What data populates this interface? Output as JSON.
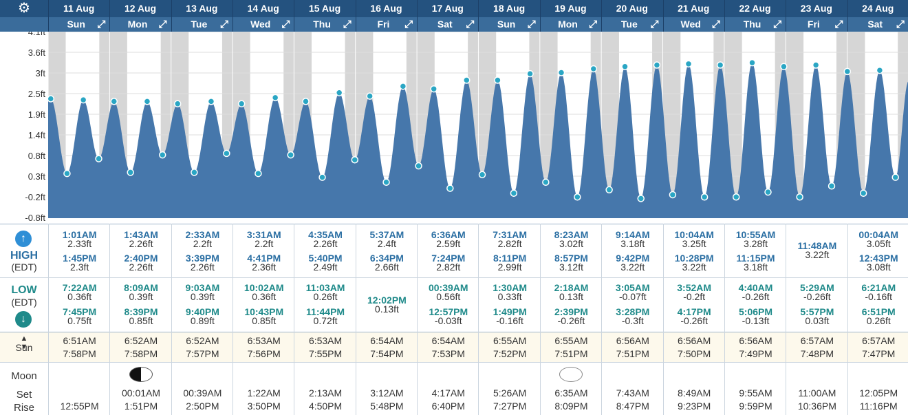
{
  "settings_icon": "gear-icon",
  "expand_icon": "expand-arrows-icon",
  "dates": [
    "11 Aug",
    "12 Aug",
    "13 Aug",
    "14 Aug",
    "15 Aug",
    "16 Aug",
    "17 Aug",
    "18 Aug",
    "19 Aug",
    "20 Aug",
    "21 Aug",
    "22 Aug",
    "23 Aug",
    "24 Aug"
  ],
  "weekdays": [
    "Sun",
    "Mon",
    "Tue",
    "Wed",
    "Thu",
    "Fri",
    "Sat",
    "Sun",
    "Mon",
    "Tue",
    "Wed",
    "Thu",
    "Fri",
    "Sat"
  ],
  "chart_data": {
    "type": "area",
    "y_tick_labels": [
      "4.1ft",
      "3.6ft",
      "3ft",
      "2.5ft",
      "1.9ft",
      "1.4ft",
      "0.8ft",
      "0.3ft",
      "-0.2ft",
      "-0.8ft"
    ],
    "ylim": [
      -0.8,
      4.1
    ],
    "grid": true,
    "tide_points": [
      {
        "day": 0,
        "time": "00:00",
        "h": 2.3
      },
      {
        "day": 0,
        "time": "01:01",
        "h": 2.33
      },
      {
        "day": 0,
        "time": "07:22",
        "h": 0.36
      },
      {
        "day": 0,
        "time": "13:45",
        "h": 2.3
      },
      {
        "day": 0,
        "time": "19:45",
        "h": 0.75
      },
      {
        "day": 1,
        "time": "01:43",
        "h": 2.26
      },
      {
        "day": 1,
        "time": "08:09",
        "h": 0.39
      },
      {
        "day": 1,
        "time": "14:40",
        "h": 2.26
      },
      {
        "day": 1,
        "time": "20:39",
        "h": 0.85
      },
      {
        "day": 2,
        "time": "02:33",
        "h": 2.2
      },
      {
        "day": 2,
        "time": "09:03",
        "h": 0.39
      },
      {
        "day": 2,
        "time": "15:39",
        "h": 2.26
      },
      {
        "day": 2,
        "time": "21:40",
        "h": 0.89
      },
      {
        "day": 3,
        "time": "03:31",
        "h": 2.2
      },
      {
        "day": 3,
        "time": "10:02",
        "h": 0.36
      },
      {
        "day": 3,
        "time": "16:41",
        "h": 2.36
      },
      {
        "day": 3,
        "time": "22:43",
        "h": 0.85
      },
      {
        "day": 4,
        "time": "04:35",
        "h": 2.26
      },
      {
        "day": 4,
        "time": "11:03",
        "h": 0.26
      },
      {
        "day": 4,
        "time": "17:40",
        "h": 2.49
      },
      {
        "day": 4,
        "time": "23:44",
        "h": 0.72
      },
      {
        "day": 5,
        "time": "05:37",
        "h": 2.4
      },
      {
        "day": 5,
        "time": "12:02",
        "h": 0.13
      },
      {
        "day": 5,
        "time": "18:34",
        "h": 2.66
      },
      {
        "day": 6,
        "time": "00:39",
        "h": 0.56
      },
      {
        "day": 6,
        "time": "06:36",
        "h": 2.59
      },
      {
        "day": 6,
        "time": "12:57",
        "h": -0.03
      },
      {
        "day": 6,
        "time": "19:24",
        "h": 2.82
      },
      {
        "day": 7,
        "time": "01:30",
        "h": 0.33
      },
      {
        "day": 7,
        "time": "07:31",
        "h": 2.82
      },
      {
        "day": 7,
        "time": "13:49",
        "h": -0.16
      },
      {
        "day": 7,
        "time": "20:11",
        "h": 2.99
      },
      {
        "day": 8,
        "time": "02:18",
        "h": 0.13
      },
      {
        "day": 8,
        "time": "08:23",
        "h": 3.02
      },
      {
        "day": 8,
        "time": "14:39",
        "h": -0.26
      },
      {
        "day": 8,
        "time": "20:57",
        "h": 3.12
      },
      {
        "day": 9,
        "time": "03:05",
        "h": -0.07
      },
      {
        "day": 9,
        "time": "09:14",
        "h": 3.18
      },
      {
        "day": 9,
        "time": "15:28",
        "h": -0.3
      },
      {
        "day": 9,
        "time": "21:42",
        "h": 3.22
      },
      {
        "day": 10,
        "time": "03:52",
        "h": -0.2
      },
      {
        "day": 10,
        "time": "10:04",
        "h": 3.25
      },
      {
        "day": 10,
        "time": "16:17",
        "h": -0.26
      },
      {
        "day": 10,
        "time": "22:28",
        "h": 3.22
      },
      {
        "day": 11,
        "time": "04:40",
        "h": -0.26
      },
      {
        "day": 11,
        "time": "10:55",
        "h": 3.28
      },
      {
        "day": 11,
        "time": "17:06",
        "h": -0.13
      },
      {
        "day": 11,
        "time": "23:15",
        "h": 3.18
      },
      {
        "day": 12,
        "time": "05:29",
        "h": -0.26
      },
      {
        "day": 12,
        "time": "11:48",
        "h": 3.22
      },
      {
        "day": 12,
        "time": "17:57",
        "h": 0.03
      },
      {
        "day": 13,
        "time": "00:04",
        "h": 3.05
      },
      {
        "day": 13,
        "time": "06:21",
        "h": -0.16
      },
      {
        "day": 13,
        "time": "12:43",
        "h": 3.08
      },
      {
        "day": 13,
        "time": "18:51",
        "h": 0.26
      },
      {
        "day": 13,
        "time": "23:59",
        "h": 2.8
      }
    ],
    "colors": {
      "tide_fill": "#4677ab",
      "marker": "#2aa6c4",
      "night_shade": "#d6d6d6",
      "grid": "#dddddd"
    }
  },
  "labels": {
    "high": "HIGH",
    "low": "LOW",
    "tz": "(EDT)",
    "sun": "Sun",
    "moon": "Moon",
    "set": "Set",
    "rise": "Rise",
    "up_icon": "arrow-up-icon",
    "down_icon": "arrow-down-icon",
    "sun_icon": "sun-up-down-icon"
  },
  "days": [
    {
      "high": [
        {
          "t": "1:01AM",
          "h": "2.33ft"
        },
        {
          "t": "1:45PM",
          "h": "2.3ft"
        }
      ],
      "low": [
        {
          "t": "7:22AM",
          "h": "0.36ft"
        },
        {
          "t": "7:45PM",
          "h": "0.75ft"
        }
      ],
      "sunrise": "6:51AM",
      "sunset": "7:58PM",
      "moon_phase": "",
      "moon_set": "",
      "moon_rise": "12:55PM"
    },
    {
      "high": [
        {
          "t": "1:43AM",
          "h": "2.26ft"
        },
        {
          "t": "2:40PM",
          "h": "2.26ft"
        }
      ],
      "low": [
        {
          "t": "8:09AM",
          "h": "0.39ft"
        },
        {
          "t": "8:39PM",
          "h": "0.85ft"
        }
      ],
      "sunrise": "6:52AM",
      "sunset": "7:58PM",
      "moon_phase": "first-quarter",
      "moon_set": "00:01AM",
      "moon_rise": "1:51PM"
    },
    {
      "high": [
        {
          "t": "2:33AM",
          "h": "2.2ft"
        },
        {
          "t": "3:39PM",
          "h": "2.26ft"
        }
      ],
      "low": [
        {
          "t": "9:03AM",
          "h": "0.39ft"
        },
        {
          "t": "9:40PM",
          "h": "0.89ft"
        }
      ],
      "sunrise": "6:52AM",
      "sunset": "7:57PM",
      "moon_phase": "",
      "moon_set": "00:39AM",
      "moon_rise": "2:50PM"
    },
    {
      "high": [
        {
          "t": "3:31AM",
          "h": "2.2ft"
        },
        {
          "t": "4:41PM",
          "h": "2.36ft"
        }
      ],
      "low": [
        {
          "t": "10:02AM",
          "h": "0.36ft"
        },
        {
          "t": "10:43PM",
          "h": "0.85ft"
        }
      ],
      "sunrise": "6:53AM",
      "sunset": "7:56PM",
      "moon_phase": "",
      "moon_set": "1:22AM",
      "moon_rise": "3:50PM"
    },
    {
      "high": [
        {
          "t": "4:35AM",
          "h": "2.26ft"
        },
        {
          "t": "5:40PM",
          "h": "2.49ft"
        }
      ],
      "low": [
        {
          "t": "11:03AM",
          "h": "0.26ft"
        },
        {
          "t": "11:44PM",
          "h": "0.72ft"
        }
      ],
      "sunrise": "6:53AM",
      "sunset": "7:55PM",
      "moon_phase": "",
      "moon_set": "2:13AM",
      "moon_rise": "4:50PM"
    },
    {
      "high": [
        {
          "t": "5:37AM",
          "h": "2.4ft"
        },
        {
          "t": "6:34PM",
          "h": "2.66ft"
        }
      ],
      "low": [
        {
          "t": "12:02PM",
          "h": "0.13ft"
        }
      ],
      "sunrise": "6:54AM",
      "sunset": "7:54PM",
      "moon_phase": "",
      "moon_set": "3:12AM",
      "moon_rise": "5:48PM"
    },
    {
      "high": [
        {
          "t": "6:36AM",
          "h": "2.59ft"
        },
        {
          "t": "7:24PM",
          "h": "2.82ft"
        }
      ],
      "low": [
        {
          "t": "00:39AM",
          "h": "0.56ft"
        },
        {
          "t": "12:57PM",
          "h": "-0.03ft"
        }
      ],
      "sunrise": "6:54AM",
      "sunset": "7:53PM",
      "moon_phase": "",
      "moon_set": "4:17AM",
      "moon_rise": "6:40PM"
    },
    {
      "high": [
        {
          "t": "7:31AM",
          "h": "2.82ft"
        },
        {
          "t": "8:11PM",
          "h": "2.99ft"
        }
      ],
      "low": [
        {
          "t": "1:30AM",
          "h": "0.33ft"
        },
        {
          "t": "1:49PM",
          "h": "-0.16ft"
        }
      ],
      "sunrise": "6:55AM",
      "sunset": "7:52PM",
      "moon_phase": "",
      "moon_set": "5:26AM",
      "moon_rise": "7:27PM"
    },
    {
      "high": [
        {
          "t": "8:23AM",
          "h": "3.02ft"
        },
        {
          "t": "8:57PM",
          "h": "3.12ft"
        }
      ],
      "low": [
        {
          "t": "2:18AM",
          "h": "0.13ft"
        },
        {
          "t": "2:39PM",
          "h": "-0.26ft"
        }
      ],
      "sunrise": "6:55AM",
      "sunset": "7:51PM",
      "moon_phase": "full",
      "moon_set": "6:35AM",
      "moon_rise": "8:09PM"
    },
    {
      "high": [
        {
          "t": "9:14AM",
          "h": "3.18ft"
        },
        {
          "t": "9:42PM",
          "h": "3.22ft"
        }
      ],
      "low": [
        {
          "t": "3:05AM",
          "h": "-0.07ft"
        },
        {
          "t": "3:28PM",
          "h": "-0.3ft"
        }
      ],
      "sunrise": "6:56AM",
      "sunset": "7:51PM",
      "moon_phase": "",
      "moon_set": "7:43AM",
      "moon_rise": "8:47PM"
    },
    {
      "high": [
        {
          "t": "10:04AM",
          "h": "3.25ft"
        },
        {
          "t": "10:28PM",
          "h": "3.22ft"
        }
      ],
      "low": [
        {
          "t": "3:52AM",
          "h": "-0.2ft"
        },
        {
          "t": "4:17PM",
          "h": "-0.26ft"
        }
      ],
      "sunrise": "6:56AM",
      "sunset": "7:50PM",
      "moon_phase": "",
      "moon_set": "8:49AM",
      "moon_rise": "9:23PM"
    },
    {
      "high": [
        {
          "t": "10:55AM",
          "h": "3.28ft"
        },
        {
          "t": "11:15PM",
          "h": "3.18ft"
        }
      ],
      "low": [
        {
          "t": "4:40AM",
          "h": "-0.26ft"
        },
        {
          "t": "5:06PM",
          "h": "-0.13ft"
        }
      ],
      "sunrise": "6:56AM",
      "sunset": "7:49PM",
      "moon_phase": "",
      "moon_set": "9:55AM",
      "moon_rise": "9:59PM"
    },
    {
      "high": [
        {
          "t": "11:48AM",
          "h": "3.22ft"
        }
      ],
      "low": [
        {
          "t": "5:29AM",
          "h": "-0.26ft"
        },
        {
          "t": "5:57PM",
          "h": "0.03ft"
        }
      ],
      "sunrise": "6:57AM",
      "sunset": "7:48PM",
      "moon_phase": "",
      "moon_set": "11:00AM",
      "moon_rise": "10:36PM"
    },
    {
      "high": [
        {
          "t": "00:04AM",
          "h": "3.05ft"
        },
        {
          "t": "12:43PM",
          "h": "3.08ft"
        }
      ],
      "low": [
        {
          "t": "6:21AM",
          "h": "-0.16ft"
        },
        {
          "t": "6:51PM",
          "h": "0.26ft"
        }
      ],
      "sunrise": "6:57AM",
      "sunset": "7:47PM",
      "moon_phase": "",
      "moon_set": "12:05PM",
      "moon_rise": "11:16PM"
    }
  ]
}
